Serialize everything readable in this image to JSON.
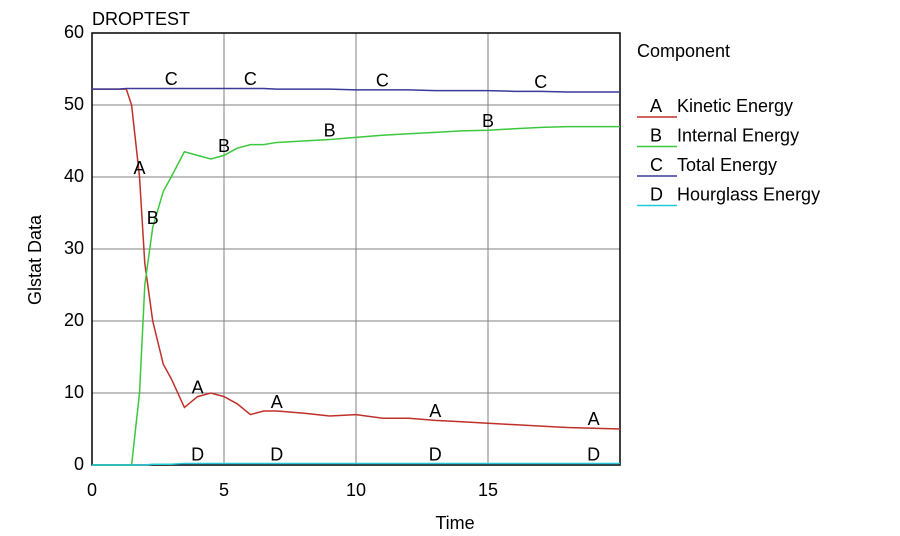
{
  "chart_data": {
    "type": "line",
    "title": "DROPTEST",
    "xlabel": "Time",
    "ylabel": "Glstat Data",
    "legend_title": "Component",
    "legend_position": "right",
    "grid": true,
    "xlim": [
      0,
      20
    ],
    "ylim": [
      0,
      60
    ],
    "xticks": [
      0,
      5,
      10,
      15
    ],
    "yticks": [
      0,
      10,
      20,
      30,
      40,
      50,
      60
    ],
    "x": [
      0,
      1,
      1.3,
      1.5,
      1.8,
      2,
      2.3,
      2.7,
      3,
      3.5,
      4,
      4.5,
      5,
      5.5,
      6,
      6.5,
      7,
      8,
      9,
      10,
      11,
      12,
      13,
      14,
      15,
      16,
      17,
      18,
      19,
      20
    ],
    "series": [
      {
        "name": "Kinetic Energy",
        "marker_letter": "A",
        "color": "#c0302a",
        "values": [
          52.2,
          52.2,
          52.2,
          50,
          40,
          28,
          20,
          14,
          12,
          8,
          9.5,
          10,
          9.5,
          8.5,
          7,
          7.5,
          7.5,
          7.2,
          6.8,
          7,
          6.5,
          6.5,
          6.2,
          6,
          5.8,
          5.6,
          5.4,
          5.2,
          5.1,
          5
        ]
      },
      {
        "name": "Internal Energy",
        "marker_letter": "B",
        "color": "#3cc83c",
        "values": [
          0,
          0,
          0,
          0,
          10,
          25,
          33,
          38,
          40,
          43.5,
          43,
          42.5,
          43,
          44,
          44.5,
          44.5,
          44.8,
          45,
          45.2,
          45.5,
          45.8,
          46,
          46.2,
          46.4,
          46.5,
          46.7,
          46.9,
          47,
          47,
          47
        ]
      },
      {
        "name": "Total Energy",
        "marker_letter": "C",
        "color": "#3a3a9a",
        "values": [
          52.2,
          52.2,
          52.3,
          52.3,
          52.3,
          52.3,
          52.3,
          52.3,
          52.3,
          52.3,
          52.3,
          52.3,
          52.3,
          52.3,
          52.3,
          52.3,
          52.2,
          52.2,
          52.2,
          52.1,
          52.1,
          52.1,
          52,
          52,
          52,
          51.9,
          51.9,
          51.8,
          51.8,
          51.8
        ]
      },
      {
        "name": "Hourglass Energy",
        "marker_letter": "D",
        "color": "#20c8d8",
        "values": [
          0,
          0,
          0,
          0,
          0,
          0,
          0.1,
          0.1,
          0.1,
          0.2,
          0.2,
          0.2,
          0.2,
          0.2,
          0.2,
          0.2,
          0.2,
          0.2,
          0.2,
          0.2,
          0.2,
          0.2,
          0.2,
          0.2,
          0.2,
          0.2,
          0.2,
          0.2,
          0.2,
          0.2
        ]
      }
    ]
  }
}
